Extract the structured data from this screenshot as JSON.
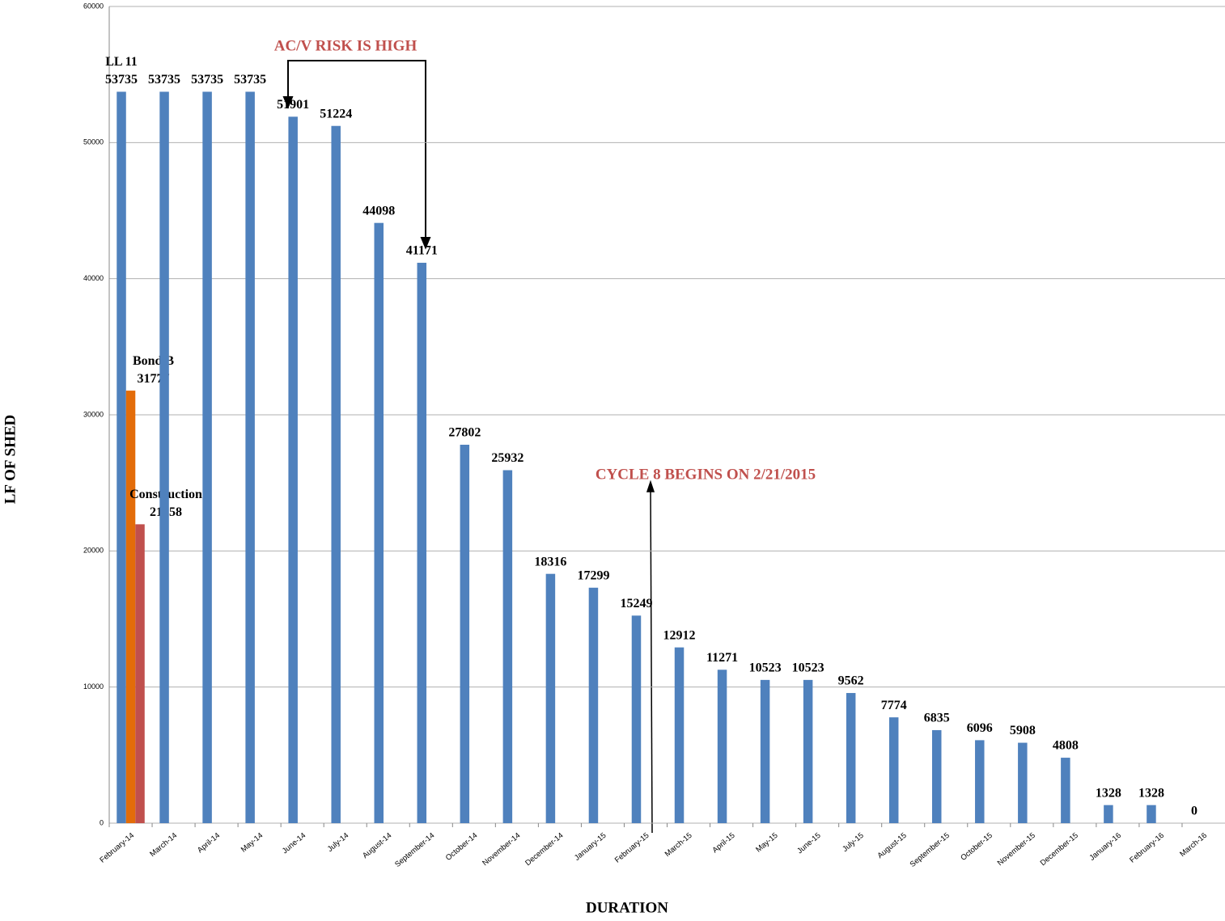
{
  "chart_data": {
    "type": "bar",
    "y_label": "LF OF SHED",
    "x_label": "DURATION",
    "annotations": [
      "AC/V RISK IS HIGH",
      "CYCLE 8 BEGINS ON 2/21/2015"
    ],
    "categories": [
      "February-14",
      "March-14",
      "April-14",
      "May-14",
      "June-14",
      "July-14",
      "August-14",
      "September-14",
      "October-14",
      "November-14",
      "December-14",
      "January-15",
      "February-15",
      "March-15",
      "April-15",
      "May-15",
      "June-15",
      "July-15",
      "August-15",
      "September-15",
      "October-15",
      "November-15",
      "December-15",
      "January-16",
      "February-16",
      "March-16"
    ],
    "series": [
      {
        "name": "LL 11",
        "color": "#4f81bd",
        "values": [
          53735,
          53735,
          53735,
          53735,
          51901,
          51224,
          44098,
          41171,
          27802,
          25932,
          18316,
          17299,
          15249,
          12912,
          11271,
          10523,
          10523,
          9562,
          7774,
          6835,
          6096,
          5908,
          4808,
          1328,
          1328,
          0
        ]
      },
      {
        "name": "Bond B",
        "color": "#e36c09",
        "values": [
          31777,
          null,
          null,
          null,
          null,
          null,
          null,
          null,
          null,
          null,
          null,
          null,
          null,
          null,
          null,
          null,
          null,
          null,
          null,
          null,
          null,
          null,
          null,
          null,
          null,
          null
        ]
      },
      {
        "name": "Construction",
        "color": "#c0504d",
        "values": [
          21958,
          null,
          null,
          null,
          null,
          null,
          null,
          null,
          null,
          null,
          null,
          null,
          null,
          null,
          null,
          null,
          null,
          null,
          null,
          null,
          null,
          null,
          null,
          null,
          null,
          null
        ]
      }
    ],
    "ylim": [
      0,
      60000
    ],
    "yticks": [
      0,
      10000,
      20000,
      30000,
      40000,
      50000,
      60000
    ],
    "grid": true
  }
}
